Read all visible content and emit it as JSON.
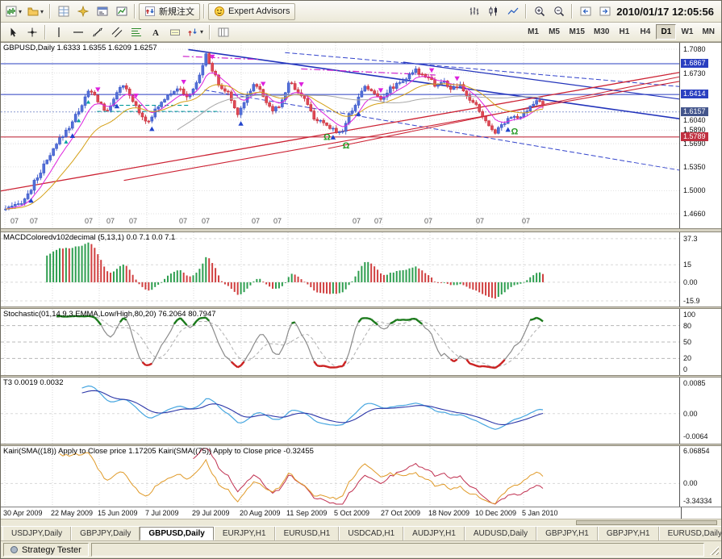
{
  "titlebar": {
    "timestamp": "2010/01/17 12:05:56"
  },
  "toolbar_main": {
    "new_order_label": "新規注文",
    "expert_advisors_label": "Expert Advisors",
    "left_items": [
      {
        "name": "new-chart",
        "icon": "chart",
        "caret": true
      },
      {
        "name": "profiles",
        "icon": "folder",
        "caret": true
      },
      {
        "sep": true
      },
      {
        "name": "market-watch",
        "icon": "grid"
      },
      {
        "name": "navigator",
        "icon": "compass"
      },
      {
        "name": "terminal",
        "icon": "terminal"
      },
      {
        "name": "strategy-tester",
        "icon": "tester"
      },
      {
        "sep": true
      }
    ],
    "right_items": [
      {
        "name": "bar-chart",
        "icon": "bars"
      },
      {
        "name": "candlestick-chart",
        "icon": "candles"
      },
      {
        "name": "line-chart",
        "icon": "line"
      },
      {
        "sep": true
      },
      {
        "name": "zoom-in",
        "icon": "zoomin"
      },
      {
        "name": "zoom-out",
        "icon": "zoomout"
      },
      {
        "sep": true
      },
      {
        "name": "scroll-back",
        "icon": "back"
      },
      {
        "name": "scroll-forward",
        "icon": "forward"
      }
    ]
  },
  "draw_tools": [
    {
      "name": "cursor",
      "icon": "cursor"
    },
    {
      "name": "crosshair",
      "icon": "cross"
    },
    {
      "sep": true
    },
    {
      "name": "vertical-line",
      "icon": "vline"
    },
    {
      "name": "horizontal-line",
      "icon": "hline"
    },
    {
      "name": "trendline",
      "icon": "tline"
    },
    {
      "name": "equidistant-channel",
      "icon": "channel"
    },
    {
      "name": "fibonacci-retracement",
      "icon": "fibo"
    },
    {
      "name": "text",
      "icon": "text"
    },
    {
      "name": "text-label",
      "icon": "label"
    },
    {
      "name": "arrow-tools",
      "icon": "arrows",
      "caret": true
    },
    {
      "sep": true
    },
    {
      "name": "period-separators",
      "icon": "periods"
    }
  ],
  "timeframes": {
    "items": [
      "M1",
      "M5",
      "M15",
      "M30",
      "H1",
      "H4",
      "D1",
      "W1",
      "MN"
    ],
    "active": "D1"
  },
  "x_axis": {
    "labels": [
      "30 Apr 2009",
      "22 May 2009",
      "15 Jun 2009",
      "7 Jul 2009",
      "29 Jul 2009",
      "20 Aug 2009",
      "11 Sep 2009",
      "5 Oct 2009",
      "27 Oct 2009",
      "18 Nov 2009",
      "10 Dec 2009",
      "5 Jan 2010"
    ],
    "x": [
      5,
      64,
      122,
      181,
      239,
      298,
      356,
      415,
      473,
      532,
      590,
      648
    ]
  },
  "chart_data": [
    {
      "type": "candlestick",
      "title": "GBPUSD,Daily 1.6333 1.6355 1.6209 1.6257",
      "symbol": "GBPUSD",
      "timeframe": "Daily",
      "open": 1.6333,
      "high": 1.6355,
      "low": 1.6209,
      "close": 1.6257,
      "bars": 170,
      "ylim": [
        1.466,
        1.708
      ],
      "y_ticks": [
        1.708,
        1.673,
        1.604,
        1.589,
        1.569,
        1.535,
        1.5,
        1.466
      ],
      "level_boxes": [
        {
          "value": "1.6867",
          "price": 1.6867,
          "color": "#2a3fc0"
        },
        {
          "value": "1.6414",
          "price": 1.6414,
          "color": "#2a3fc0"
        },
        {
          "value": "1.6157",
          "price": 1.6157,
          "color": "#44568c"
        },
        {
          "value": "1.5789",
          "price": 1.5789,
          "color": "#c03040"
        }
      ],
      "h_lines": [
        {
          "price": 1.6867,
          "color": "#2a3fc0",
          "w": 1,
          "dash": ""
        },
        {
          "price": 1.6414,
          "color": "#2a3fc0",
          "w": 1,
          "dash": ""
        },
        {
          "price": 1.6157,
          "color": "#8a9ad0",
          "w": 1,
          "dash": "2,2"
        },
        {
          "price": 1.5789,
          "color": "#c03040",
          "w": 1.2,
          "dash": ""
        }
      ],
      "trend_lines": [
        {
          "u1": 0.34,
          "p1": 1.7075,
          "u2": 1.27,
          "p2": 1.604,
          "color": "#2233bb",
          "w": 1.6,
          "dash": ""
        },
        {
          "u1": 0.74,
          "p1": 1.689,
          "u2": 1.27,
          "p2": 1.633,
          "color": "#2233bb",
          "w": 1.2,
          "dash": ""
        },
        {
          "u1": 0.52,
          "p1": 1.703,
          "u2": 1.27,
          "p2": 1.652,
          "color": "#3344cc",
          "w": 1,
          "dash": "6,3"
        },
        {
          "u1": 0.37,
          "p1": 1.648,
          "u2": 1.27,
          "p2": 1.528,
          "color": "#3344cc",
          "w": 1,
          "dash": "6,3"
        },
        {
          "u1": -0.02,
          "p1": 1.498,
          "u2": 1.27,
          "p2": 1.676,
          "color": "#cc2233",
          "w": 1.3,
          "dash": ""
        },
        {
          "u1": 0.22,
          "p1": 1.515,
          "u2": 1.27,
          "p2": 1.663,
          "color": "#cc2233",
          "w": 1.1,
          "dash": ""
        },
        {
          "u1": 0.6,
          "p1": 1.562,
          "u2": 1.27,
          "p2": 1.67,
          "color": "#cc2233",
          "w": 1,
          "dash": ""
        },
        {
          "u1": 0.55,
          "p1": 1.679,
          "u2": 0.8,
          "p2": 1.67,
          "color": "#cc22cc",
          "w": 1.2,
          "dash": "8,3,2,3"
        },
        {
          "u1": 0.33,
          "p1": 1.6975,
          "u2": 0.47,
          "p2": 1.693,
          "color": "#cc22cc",
          "w": 1.2,
          "dash": "8,3,2,3"
        },
        {
          "u1": 0.17,
          "p1": 1.6165,
          "u2": 0.4,
          "p2": 1.6165,
          "color": "#009999",
          "w": 1.1,
          "dash": "5,3"
        },
        {
          "u1": 0.2,
          "p1": 1.6255,
          "u2": 0.34,
          "p2": 1.6255,
          "color": "#009999",
          "w": 1.1,
          "dash": "5,3"
        }
      ],
      "anchors": [
        [
          0,
          1.473
        ],
        [
          0.02,
          1.477
        ],
        [
          0.04,
          1.492
        ],
        [
          0.06,
          1.522
        ],
        [
          0.086,
          1.555
        ],
        [
          0.1,
          1.575
        ],
        [
          0.12,
          1.596
        ],
        [
          0.14,
          1.624
        ],
        [
          0.155,
          1.647
        ],
        [
          0.165,
          1.64
        ],
        [
          0.174,
          1.63
        ],
        [
          0.19,
          1.614
        ],
        [
          0.205,
          1.645
        ],
        [
          0.22,
          1.653
        ],
        [
          0.24,
          1.627
        ],
        [
          0.262,
          1.601
        ],
        [
          0.28,
          1.619
        ],
        [
          0.3,
          1.641
        ],
        [
          0.32,
          1.652
        ],
        [
          0.335,
          1.637
        ],
        [
          0.35,
          1.648
        ],
        [
          0.365,
          1.68
        ],
        [
          0.374,
          1.701
        ],
        [
          0.385,
          1.676
        ],
        [
          0.4,
          1.651
        ],
        [
          0.415,
          1.643
        ],
        [
          0.43,
          1.613
        ],
        [
          0.44,
          1.624
        ],
        [
          0.452,
          1.645
        ],
        [
          0.465,
          1.659
        ],
        [
          0.48,
          1.637
        ],
        [
          0.5,
          1.617
        ],
        [
          0.515,
          1.631
        ],
        [
          0.527,
          1.661
        ],
        [
          0.54,
          1.649
        ],
        [
          0.555,
          1.637
        ],
        [
          0.57,
          1.611
        ],
        [
          0.59,
          1.597
        ],
        [
          0.613,
          1.589
        ],
        [
          0.625,
          1.585
        ],
        [
          0.64,
          1.613
        ],
        [
          0.655,
          1.634
        ],
        [
          0.67,
          1.657
        ],
        [
          0.685,
          1.641
        ],
        [
          0.7,
          1.637
        ],
        [
          0.715,
          1.649
        ],
        [
          0.73,
          1.659
        ],
        [
          0.75,
          1.667
        ],
        [
          0.764,
          1.677
        ],
        [
          0.775,
          1.671
        ],
        [
          0.789,
          1.669
        ],
        [
          0.8,
          1.653
        ],
        [
          0.814,
          1.661
        ],
        [
          0.83,
          1.649
        ],
        [
          0.845,
          1.654
        ],
        [
          0.86,
          1.637
        ],
        [
          0.877,
          1.623
        ],
        [
          0.89,
          1.607
        ],
        [
          0.9,
          1.593
        ],
        [
          0.912,
          1.587
        ],
        [
          0.925,
          1.599
        ],
        [
          0.94,
          1.611
        ],
        [
          0.95,
          1.605
        ],
        [
          0.964,
          1.611
        ],
        [
          0.975,
          1.621
        ],
        [
          0.99,
          1.634
        ],
        [
          1,
          1.6257
        ]
      ],
      "hour_labels": {
        "text": "07",
        "x": [
          12,
          36,
          104,
          131,
          159,
          221,
          249,
          311,
          338,
          436,
          463,
          525,
          589,
          646
        ]
      },
      "markers": {
        "down_arrows": {
          "color": "#dd22dd",
          "u": [
            0.17,
            0.24,
            0.33,
            0.385,
            0.48,
            0.55,
            0.7,
            0.79,
            0.84
          ]
        },
        "up_arrows": {
          "color": "#2244cc",
          "u": [
            0.05,
            0.125,
            0.21,
            0.27,
            0.44,
            0.61,
            0.655,
            0.935
          ]
        },
        "omega": {
          "color": "#229922",
          "glyph": "Ω",
          "u": [
            0.6,
            0.635,
            0.945
          ]
        },
        "teal_up": {
          "color": "#00a0a0",
          "u": [
            0.115,
            0.135,
            0.155
          ]
        }
      },
      "ma_colors": [
        "#dd22dd",
        "#d4a017",
        "#a8a8a8"
      ]
    },
    {
      "type": "bar",
      "title": "MACDColoredv102decimal (5,13,1) 0.0 7.1 0.0 7.1",
      "tick_labels": [
        "37.3",
        "15",
        "0.00",
        "-15.9"
      ],
      "tick_values": [
        37.3,
        15,
        0,
        -15.9
      ],
      "ylim": [
        -18,
        40
      ],
      "colors": {
        "up": "#2e9e4f",
        "down": "#d04040"
      }
    },
    {
      "type": "line",
      "title": "Stochastic(01,14,9,3,EMMA,Low/High,80,20) 76.2064 80.7947",
      "tick_labels": [
        "100",
        "80",
        "50",
        "20",
        "0"
      ],
      "tick_values": [
        100,
        80,
        50,
        20,
        0
      ],
      "levels": [
        80,
        50,
        20
      ],
      "ylim": [
        -6,
        106
      ],
      "colors": {
        "main": "#8a8a8a",
        "signal": "#b0b0b0",
        "over": "#1a7a1a",
        "under": "#cc2222"
      }
    },
    {
      "type": "line",
      "title": "T3 0.0019 0.0032",
      "tick_labels": [
        "0.0085",
        "0.00",
        "-0.0064"
      ],
      "tick_values": [
        0.0085,
        0,
        -0.0064
      ],
      "ylim": [
        -0.0078,
        0.0095
      ],
      "colors": {
        "fast": "#46a6e0",
        "slow": "#2b36a8"
      }
    },
    {
      "type": "line",
      "title": "Kairi(SMA((18)) Apply to Close price 1.17205  Kairi(SMA((75)) Apply to Close price -0.32455",
      "tick_labels": [
        "6.06854",
        "0.00",
        "-3.34334"
      ],
      "tick_values": [
        6.06854,
        0,
        -3.34334
      ],
      "ylim": [
        -3.9,
        6.6
      ],
      "colors": {
        "k18": "#e09a28",
        "k75": "#c03050"
      }
    }
  ],
  "tabs": [
    "USDJPY,Daily",
    "GBPJPY,Daily",
    "GBPUSD,Daily",
    "EURJPY,H1",
    "EURUSD,H1",
    "USDCAD,H1",
    "AUDJPY,H1",
    "AUDUSD,Daily",
    "GBPJPY,H1",
    "GBPJPY,H1",
    "EURUSD,Daily"
  ],
  "active_tab": "GBPUSD,Daily",
  "status": {
    "label": "Strategy Tester"
  }
}
